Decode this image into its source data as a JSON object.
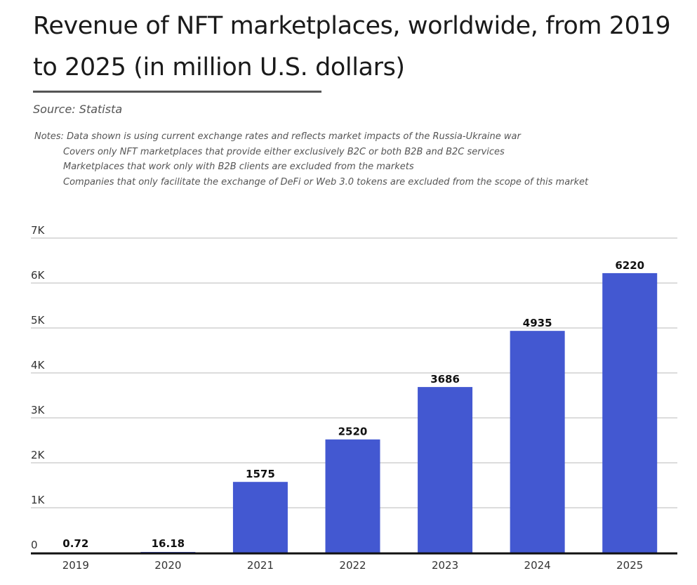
{
  "header": {
    "title": "Revenue of NFT marketplaces, worldwide, from 2019 to 2025 (in million U.S. dollars)",
    "source": "Source: Statista",
    "notes_label": "Notes:",
    "notes": [
      "Data shown is using current exchange rates and reflects market impacts of the Russia-Ukraine war",
      "Covers only NFT marketplaces that provide either exclusively B2C or both B2B and B2C services",
      "Marketplaces that work only with B2B clients are excluded from the markets",
      "Companies that only facilitate the exchange of DeFi or Web 3.0 tokens are excluded from the scope of this market"
    ]
  },
  "colors": {
    "bar": "#4358d1",
    "gridline": "#d0d0d0",
    "axis": "#111111"
  },
  "chart_data": {
    "type": "bar",
    "title": "Revenue of NFT marketplaces, worldwide, from 2019 to 2025 (in million U.S. dollars)",
    "xlabel": "",
    "ylabel": "",
    "categories": [
      "2019",
      "2020",
      "2021",
      "2022",
      "2023",
      "2024",
      "2025"
    ],
    "values": [
      0.72,
      16.18,
      1575,
      2520,
      3686,
      4935,
      6220
    ],
    "data_labels": [
      "0.72",
      "16.18",
      "1575",
      "2520",
      "3686",
      "4935",
      "6220"
    ],
    "ylim": [
      0,
      7000
    ],
    "yticks": [
      0,
      1000,
      2000,
      3000,
      4000,
      5000,
      6000,
      7000
    ],
    "ytick_labels": [
      "0",
      "1K",
      "2K",
      "3K",
      "4K",
      "5K",
      "6K",
      "7K"
    ],
    "grid": true,
    "legend": "none"
  }
}
